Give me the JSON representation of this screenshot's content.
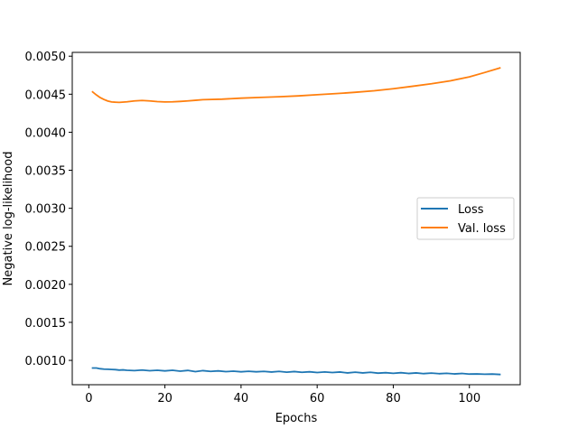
{
  "chart_data": {
    "type": "line",
    "title": "",
    "xlabel": "Epochs",
    "ylabel": "Negative log-likelihood",
    "xlim": [
      -4.35,
      113.35
    ],
    "ylim": [
      0.00068,
      0.00505
    ],
    "x_ticks": [
      0,
      20,
      40,
      60,
      80,
      100
    ],
    "x_tick_labels": [
      "0",
      "20",
      "40",
      "60",
      "80",
      "100"
    ],
    "y_ticks": [
      0.001,
      0.0015,
      0.002,
      0.0025,
      0.003,
      0.0035,
      0.004,
      0.0045,
      0.005
    ],
    "y_tick_labels": [
      "0.0010",
      "0.0015",
      "0.0020",
      "0.0025",
      "0.0030",
      "0.0035",
      "0.0040",
      "0.0045",
      "0.0050"
    ],
    "grid": false,
    "legend_position": "center-right",
    "series": [
      {
        "name": "Loss",
        "color": "#1f77b4",
        "x": [
          1,
          2,
          3,
          4,
          5,
          6,
          7,
          8,
          9,
          10,
          12,
          14,
          16,
          18,
          20,
          22,
          24,
          26,
          28,
          30,
          32,
          34,
          36,
          38,
          40,
          42,
          44,
          46,
          48,
          50,
          52,
          54,
          56,
          58,
          60,
          62,
          64,
          66,
          68,
          70,
          72,
          74,
          76,
          78,
          80,
          82,
          84,
          86,
          88,
          90,
          92,
          94,
          96,
          98,
          100,
          102,
          104,
          106,
          108
        ],
        "y": [
          0.0009,
          0.0009,
          0.00089,
          0.000885,
          0.000883,
          0.00088,
          0.000878,
          0.000872,
          0.000875,
          0.00087,
          0.000866,
          0.000873,
          0.000864,
          0.00087,
          0.000862,
          0.00087,
          0.000858,
          0.000868,
          0.000852,
          0.000865,
          0.000855,
          0.000862,
          0.000852,
          0.000858,
          0.00085,
          0.000857,
          0.00085,
          0.000855,
          0.000847,
          0.000855,
          0.000845,
          0.000853,
          0.000843,
          0.00085,
          0.00084,
          0.000848,
          0.00084,
          0.000847,
          0.000835,
          0.000845,
          0.000835,
          0.000843,
          0.000832,
          0.000838,
          0.00083,
          0.000838,
          0.000828,
          0.000835,
          0.000826,
          0.000833,
          0.000825,
          0.00083,
          0.000822,
          0.000828,
          0.00082,
          0.000822,
          0.000818,
          0.00082,
          0.000815
        ]
      },
      {
        "name": "Val. loss",
        "color": "#ff7f0e",
        "x": [
          1,
          2,
          3,
          4,
          5,
          6,
          8,
          10,
          12,
          14,
          16,
          18,
          20,
          22,
          24,
          26,
          28,
          30,
          35,
          40,
          45,
          50,
          55,
          60,
          65,
          70,
          75,
          80,
          85,
          90,
          95,
          100,
          104,
          108
        ],
        "y": [
          0.00453,
          0.00449,
          0.004455,
          0.00443,
          0.00441,
          0.004398,
          0.004392,
          0.0044,
          0.004412,
          0.004418,
          0.004412,
          0.004403,
          0.004398,
          0.0044,
          0.004405,
          0.004412,
          0.00442,
          0.004428,
          0.004435,
          0.004448,
          0.004458,
          0.004467,
          0.004478,
          0.004493,
          0.004508,
          0.004525,
          0.004545,
          0.004572,
          0.004604,
          0.004637,
          0.004676,
          0.004728,
          0.004785,
          0.004845
        ]
      }
    ]
  }
}
